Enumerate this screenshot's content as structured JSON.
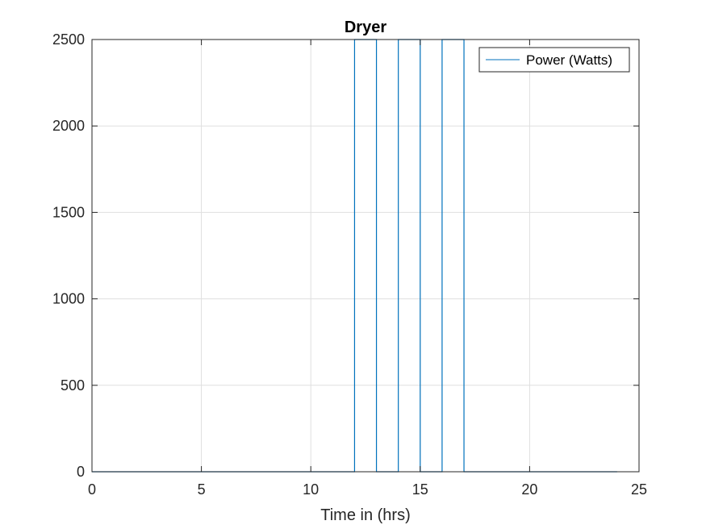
{
  "chart_data": {
    "type": "line",
    "title": "Dryer",
    "xlabel": "Time in (hrs)",
    "ylabel": "",
    "xlim": [
      0,
      25
    ],
    "ylim": [
      0,
      2500
    ],
    "xticks": [
      0,
      5,
      10,
      15,
      20,
      25
    ],
    "yticks": [
      0,
      500,
      1000,
      1500,
      2000,
      2500
    ],
    "grid": true,
    "legend_position": "top-right",
    "series": [
      {
        "name": "Power (Watts)",
        "color": "#0072BD",
        "step": "post",
        "x": [
          0,
          12,
          13,
          14,
          15,
          16,
          17,
          24
        ],
        "y": [
          0,
          2500,
          0,
          2500,
          0,
          2500,
          0,
          0
        ]
      }
    ]
  }
}
